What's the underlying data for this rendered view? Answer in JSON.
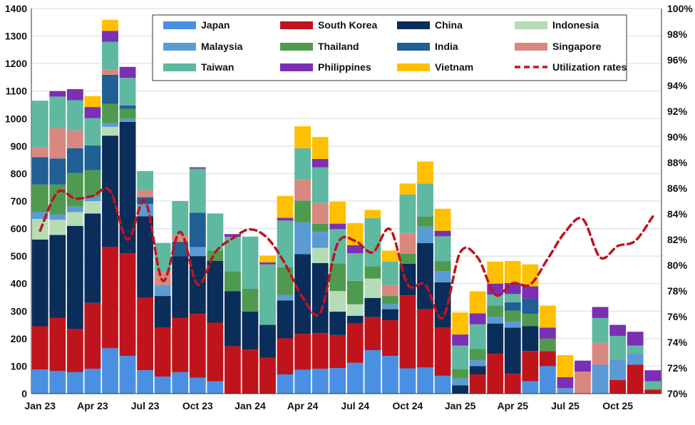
{
  "chart_data": {
    "type": "bar",
    "stacked": true,
    "x_tick_labels": [
      {
        "index": 0,
        "label": "Jan 23"
      },
      {
        "index": 3,
        "label": "Apr 23"
      },
      {
        "index": 6,
        "label": "Jul 23"
      },
      {
        "index": 9,
        "label": "Oct 23"
      },
      {
        "index": 12,
        "label": "Jan 24"
      },
      {
        "index": 15,
        "label": "Apr 24"
      },
      {
        "index": 18,
        "label": "Jul 24"
      },
      {
        "index": 21,
        "label": "Oct 24"
      },
      {
        "index": 24,
        "label": "Jan 25"
      },
      {
        "index": 27,
        "label": "Apr 25"
      },
      {
        "index": 30,
        "label": "Jul 25"
      },
      {
        "index": 33,
        "label": "Oct 25"
      }
    ],
    "ylim": [
      0,
      1400
    ],
    "yticks": [
      0,
      100,
      200,
      300,
      400,
      500,
      600,
      700,
      800,
      900,
      1000,
      1100,
      1200,
      1300,
      1400
    ],
    "y2lim": [
      70,
      100
    ],
    "y2ticks": [
      70,
      72,
      74,
      76,
      78,
      80,
      82,
      84,
      86,
      88,
      90,
      92,
      94,
      96,
      98,
      100
    ],
    "y2_format": "%",
    "grid": true,
    "legend": "top",
    "series": [
      {
        "name": "Japan",
        "color": "#4a90e2",
        "values": [
          88,
          82,
          78,
          90,
          165,
          137,
          85,
          62,
          78,
          58,
          45,
          0,
          0,
          0,
          70,
          87,
          90,
          93,
          112,
          158,
          137,
          92,
          95,
          65,
          0,
          0,
          0,
          0,
          45,
          100,
          0,
          0,
          0,
          0,
          0,
          0
        ]
      },
      {
        "name": "South Korea",
        "color": "#c0141c",
        "values": [
          157,
          193,
          157,
          240,
          368,
          373,
          265,
          178,
          197,
          232,
          213,
          172,
          160,
          130,
          131,
          130,
          130,
          120,
          143,
          120,
          130,
          265,
          212,
          175,
          0,
          70,
          145,
          72,
          110,
          55,
          0,
          0,
          0,
          50,
          105,
          15
        ]
      },
      {
        "name": "China",
        "color": "#0a2d5a",
        "values": [
          315,
          302,
          375,
          325,
          405,
          478,
          295,
          115,
          225,
          210,
          225,
          200,
          138,
          120,
          138,
          290,
          255,
          85,
          28,
          70,
          40,
          115,
          240,
          165,
          30,
          30,
          110,
          168,
          90,
          0,
          0,
          0,
          0,
          0,
          0,
          0
        ]
      },
      {
        "name": "Indonesia",
        "color": "#b5dcb5",
        "values": [
          75,
          55,
          50,
          45,
          32,
          0,
          0,
          0,
          0,
          0,
          0,
          0,
          0,
          0,
          0,
          0,
          55,
          75,
          42,
          70,
          0,
          0,
          0,
          0,
          0,
          0,
          0,
          0,
          0,
          0,
          0,
          0,
          0,
          0,
          0,
          0
        ]
      },
      {
        "name": "Malaysia",
        "color": "#5b9bd5",
        "values": [
          25,
          20,
          20,
          17,
          14,
          12,
          44,
          40,
          0,
          33,
          0,
          0,
          0,
          0,
          20,
          115,
          58,
          0,
          0,
          0,
          18,
          0,
          60,
          40,
          25,
          22,
          25,
          22,
          0,
          0,
          20,
          0,
          105,
          75,
          40,
          0
        ]
      },
      {
        "name": "Thailand",
        "color": "#4f9a4f",
        "values": [
          100,
          108,
          122,
          95,
          70,
          35,
          0,
          0,
          0,
          0,
          37,
          73,
          83,
          0,
          100,
          80,
          30,
          100,
          85,
          45,
          30,
          37,
          37,
          37,
          35,
          40,
          40,
          40,
          45,
          45,
          0,
          0,
          0,
          0,
          0,
          0
        ]
      },
      {
        "name": "India",
        "color": "#1f5f94",
        "values": [
          100,
          95,
          90,
          90,
          105,
          13,
          25,
          0,
          52,
          125,
          0,
          0,
          0,
          0,
          0,
          0,
          0,
          0,
          0,
          0,
          0,
          0,
          0,
          0,
          0,
          0,
          0,
          30,
          55,
          0,
          0,
          0,
          0,
          0,
          0,
          0
        ]
      },
      {
        "name": "Singapore",
        "color": "#d98880",
        "values": [
          35,
          110,
          65,
          0,
          20,
          0,
          25,
          48,
          25,
          0,
          0,
          0,
          0,
          0,
          0,
          75,
          75,
          0,
          0,
          0,
          40,
          75,
          0,
          0,
          0,
          0,
          0,
          0,
          0,
          0,
          0,
          80,
          80,
          0,
          0,
          0
        ]
      },
      {
        "name": "Taiwan",
        "color": "#5fb8a0",
        "values": [
          170,
          115,
          110,
          100,
          100,
          100,
          70,
          105,
          123,
          160,
          135,
          125,
          190,
          220,
          170,
          115,
          130,
          125,
          100,
          175,
          85,
          140,
          120,
          90,
          85,
          90,
          40,
          30,
          0,
          0,
          0,
          0,
          90,
          85,
          30,
          30
        ]
      },
      {
        "name": "Philippines",
        "color": "#7b2fb3",
        "values": [
          0,
          20,
          40,
          40,
          40,
          40,
          0,
          0,
          0,
          5,
          0,
          10,
          0,
          7,
          10,
          0,
          30,
          20,
          30,
          0,
          0,
          0,
          0,
          20,
          40,
          40,
          40,
          40,
          45,
          40,
          40,
          40,
          40,
          40,
          50,
          40
        ]
      },
      {
        "name": "Vietnam",
        "color": "#ffc000",
        "values": [
          0,
          0,
          0,
          40,
          40,
          0,
          0,
          0,
          0,
          0,
          0,
          0,
          0,
          25,
          80,
          80,
          80,
          80,
          80,
          30,
          40,
          40,
          80,
          80,
          80,
          80,
          80,
          80,
          80,
          80,
          80,
          0,
          0,
          0,
          0,
          0
        ]
      }
    ],
    "line_series": [
      {
        "name": "Utilization rates",
        "color": "#c0141c",
        "style": "dashed",
        "axis": "right",
        "values": [
          82.7,
          85.7,
          85.2,
          85.4,
          85.8,
          82.0,
          85.0,
          78.8,
          82.6,
          78.5,
          81.0,
          82.1,
          82.8,
          82.1,
          80.1,
          77.5,
          76.3,
          81.7,
          81.9,
          81.0,
          82.8,
          78.5,
          78.5,
          75.9,
          81.0,
          80.6,
          77.7,
          78.6,
          78.5,
          80.5,
          82.6,
          83.6,
          80.6,
          81.5,
          81.9,
          83.8
        ]
      }
    ]
  }
}
